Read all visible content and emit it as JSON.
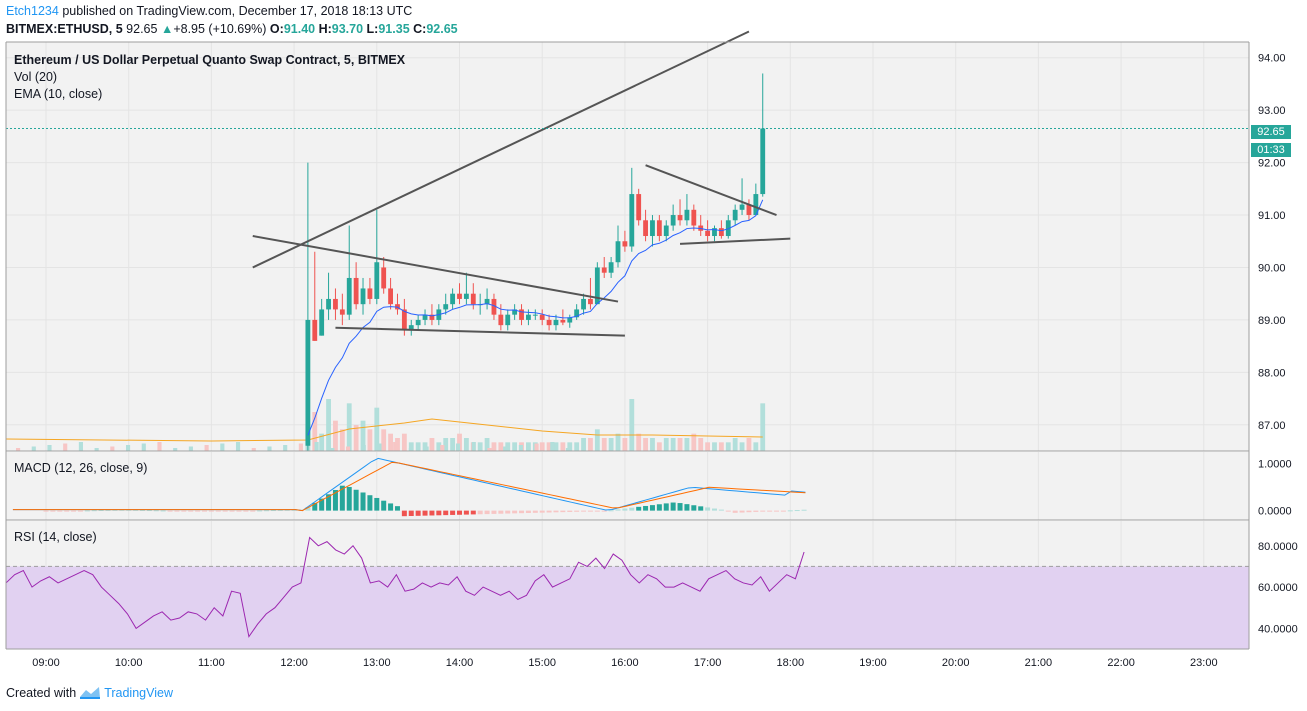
{
  "header": {
    "author": "Etch1234",
    "published": "published on TradingView.com, December 17, 2018 18:13 UTC",
    "symbol": "BITMEX:ETHUSD, 5",
    "last": "92.65",
    "change": "+8.95 (+10.69%)",
    "o_label": "O:",
    "o": "91.40",
    "h_label": "H:",
    "h": "93.70",
    "l_label": "L:",
    "l": "91.35",
    "c_label": "C:",
    "c": "92.65"
  },
  "legends": {
    "title": "Ethereum / US Dollar Perpetual Quanto Swap Contract, 5, BITMEX",
    "vol": "Vol (20)",
    "ema": "EMA (10, close)",
    "macd": "MACD (12, 26, close, 9)",
    "rsi": "RSI (14, close)"
  },
  "price_tag": {
    "price": "92.65",
    "countdown": "01:33"
  },
  "footer": {
    "created": "Created with",
    "brand": "TradingView"
  },
  "colors": {
    "up": "#26a69a",
    "down": "#ef5350",
    "ema": "#2962ff",
    "macd": "#2196f3",
    "signal": "#ff6d00",
    "rsi": "#9c27b0",
    "rsi_band": "#e1d1f1"
  },
  "chart_data": [
    {
      "type": "candlestick",
      "title": "Ethereum / US Dollar Perpetual Quanto Swap Contract, 5, BITMEX",
      "x_ticks": [
        "09:00",
        "10:00",
        "11:00",
        "12:00",
        "13:00",
        "14:00",
        "15:00",
        "16:00",
        "17:00",
        "18:00",
        "19:00",
        "20:00",
        "21:00",
        "22:00",
        "23:00"
      ],
      "y_ticks": [
        "87.00",
        "88.00",
        "89.00",
        "90.00",
        "91.00",
        "92.00",
        "93.00",
        "94.00"
      ],
      "ylim": [
        86.5,
        94.3
      ],
      "last_price": 92.65,
      "candles": [
        {
          "t": "12:10",
          "o": 86.6,
          "h": 92.0,
          "l": 86.5,
          "c": 89.0
        },
        {
          "t": "12:15",
          "o": 89.0,
          "h": 90.3,
          "l": 88.6,
          "c": 88.6
        },
        {
          "t": "12:20",
          "o": 88.7,
          "h": 89.4,
          "l": 88.7,
          "c": 89.2
        },
        {
          "t": "12:25",
          "o": 89.2,
          "h": 89.9,
          "l": 89.0,
          "c": 89.4
        },
        {
          "t": "12:30",
          "o": 89.4,
          "h": 89.6,
          "l": 89.0,
          "c": 89.2
        },
        {
          "t": "12:35",
          "o": 89.2,
          "h": 89.5,
          "l": 88.9,
          "c": 89.1
        },
        {
          "t": "12:40",
          "o": 89.1,
          "h": 90.8,
          "l": 89.0,
          "c": 89.8
        },
        {
          "t": "12:45",
          "o": 89.8,
          "h": 90.1,
          "l": 89.2,
          "c": 89.3
        },
        {
          "t": "12:50",
          "o": 89.3,
          "h": 89.8,
          "l": 89.1,
          "c": 89.6
        },
        {
          "t": "12:55",
          "o": 89.6,
          "h": 89.8,
          "l": 89.3,
          "c": 89.4
        },
        {
          "t": "13:00",
          "o": 89.4,
          "h": 91.1,
          "l": 89.3,
          "c": 90.1
        },
        {
          "t": "13:05",
          "o": 90.0,
          "h": 90.2,
          "l": 89.5,
          "c": 89.6
        },
        {
          "t": "13:10",
          "o": 89.6,
          "h": 89.8,
          "l": 89.2,
          "c": 89.3
        },
        {
          "t": "13:15",
          "o": 89.3,
          "h": 89.5,
          "l": 89.1,
          "c": 89.2
        },
        {
          "t": "13:20",
          "o": 89.2,
          "h": 89.4,
          "l": 88.7,
          "c": 88.8
        },
        {
          "t": "13:25",
          "o": 88.8,
          "h": 89.0,
          "l": 88.7,
          "c": 88.9
        },
        {
          "t": "13:30",
          "o": 88.9,
          "h": 89.1,
          "l": 88.8,
          "c": 89.0
        },
        {
          "t": "13:35",
          "o": 89.0,
          "h": 89.2,
          "l": 88.9,
          "c": 89.1
        },
        {
          "t": "13:40",
          "o": 89.1,
          "h": 89.3,
          "l": 88.9,
          "c": 89.0
        },
        {
          "t": "13:45",
          "o": 89.0,
          "h": 89.3,
          "l": 88.9,
          "c": 89.2
        },
        {
          "t": "13:50",
          "o": 89.2,
          "h": 89.5,
          "l": 89.1,
          "c": 89.3
        },
        {
          "t": "13:55",
          "o": 89.3,
          "h": 89.6,
          "l": 89.2,
          "c": 89.5
        },
        {
          "t": "14:00",
          "o": 89.5,
          "h": 89.7,
          "l": 89.3,
          "c": 89.4
        },
        {
          "t": "14:05",
          "o": 89.4,
          "h": 89.9,
          "l": 89.3,
          "c": 89.5
        },
        {
          "t": "14:10",
          "o": 89.5,
          "h": 89.7,
          "l": 89.2,
          "c": 89.3
        },
        {
          "t": "14:15",
          "o": 89.3,
          "h": 89.5,
          "l": 89.1,
          "c": 89.3
        },
        {
          "t": "14:20",
          "o": 89.3,
          "h": 89.6,
          "l": 89.2,
          "c": 89.4
        },
        {
          "t": "14:25",
          "o": 89.4,
          "h": 89.5,
          "l": 89.0,
          "c": 89.1
        },
        {
          "t": "14:30",
          "o": 89.1,
          "h": 89.3,
          "l": 88.8,
          "c": 88.9
        },
        {
          "t": "14:35",
          "o": 88.9,
          "h": 89.2,
          "l": 88.8,
          "c": 89.1
        },
        {
          "t": "14:40",
          "o": 89.1,
          "h": 89.3,
          "l": 89.0,
          "c": 89.2
        },
        {
          "t": "14:45",
          "o": 89.2,
          "h": 89.3,
          "l": 88.9,
          "c": 89.0
        },
        {
          "t": "14:50",
          "o": 89.0,
          "h": 89.2,
          "l": 88.9,
          "c": 89.1
        },
        {
          "t": "14:55",
          "o": 89.1,
          "h": 89.2,
          "l": 89.0,
          "c": 89.1
        },
        {
          "t": "15:00",
          "o": 89.1,
          "h": 89.2,
          "l": 88.9,
          "c": 89.0
        },
        {
          "t": "15:05",
          "o": 89.0,
          "h": 89.1,
          "l": 88.8,
          "c": 88.9
        },
        {
          "t": "15:10",
          "o": 88.9,
          "h": 89.1,
          "l": 88.8,
          "c": 89.0
        },
        {
          "t": "15:15",
          "o": 89.0,
          "h": 89.2,
          "l": 88.9,
          "c": 88.95
        },
        {
          "t": "15:20",
          "o": 88.95,
          "h": 89.1,
          "l": 88.85,
          "c": 89.05
        },
        {
          "t": "15:25",
          "o": 89.05,
          "h": 89.3,
          "l": 89.0,
          "c": 89.2
        },
        {
          "t": "15:30",
          "o": 89.2,
          "h": 89.5,
          "l": 89.1,
          "c": 89.4
        },
        {
          "t": "15:35",
          "o": 89.4,
          "h": 89.8,
          "l": 89.2,
          "c": 89.3
        },
        {
          "t": "15:40",
          "o": 89.3,
          "h": 90.1,
          "l": 89.3,
          "c": 90.0
        },
        {
          "t": "15:45",
          "o": 90.0,
          "h": 90.2,
          "l": 89.8,
          "c": 89.9
        },
        {
          "t": "15:50",
          "o": 89.9,
          "h": 90.2,
          "l": 89.8,
          "c": 90.1
        },
        {
          "t": "15:55",
          "o": 90.1,
          "h": 90.8,
          "l": 90.0,
          "c": 90.5
        },
        {
          "t": "16:00",
          "o": 90.5,
          "h": 90.7,
          "l": 90.3,
          "c": 90.4
        },
        {
          "t": "16:05",
          "o": 90.4,
          "h": 91.9,
          "l": 90.3,
          "c": 91.4
        },
        {
          "t": "16:10",
          "o": 91.4,
          "h": 91.5,
          "l": 90.8,
          "c": 90.9
        },
        {
          "t": "16:15",
          "o": 90.9,
          "h": 91.1,
          "l": 90.5,
          "c": 90.6
        },
        {
          "t": "16:20",
          "o": 90.6,
          "h": 91.0,
          "l": 90.4,
          "c": 90.9
        },
        {
          "t": "16:25",
          "o": 90.9,
          "h": 91.0,
          "l": 90.5,
          "c": 90.6
        },
        {
          "t": "16:30",
          "o": 90.6,
          "h": 90.9,
          "l": 90.5,
          "c": 90.8
        },
        {
          "t": "16:35",
          "o": 90.8,
          "h": 91.2,
          "l": 90.7,
          "c": 91.0
        },
        {
          "t": "16:40",
          "o": 91.0,
          "h": 91.3,
          "l": 90.8,
          "c": 90.9
        },
        {
          "t": "16:45",
          "o": 90.9,
          "h": 91.4,
          "l": 90.8,
          "c": 91.1
        },
        {
          "t": "16:50",
          "o": 91.1,
          "h": 91.2,
          "l": 90.7,
          "c": 90.8
        },
        {
          "t": "16:55",
          "o": 90.8,
          "h": 91.0,
          "l": 90.6,
          "c": 90.7
        },
        {
          "t": "17:00",
          "o": 90.7,
          "h": 90.9,
          "l": 90.5,
          "c": 90.6
        },
        {
          "t": "17:05",
          "o": 90.6,
          "h": 90.8,
          "l": 90.5,
          "c": 90.75
        },
        {
          "t": "17:10",
          "o": 90.75,
          "h": 90.9,
          "l": 90.55,
          "c": 90.6
        },
        {
          "t": "17:15",
          "o": 90.6,
          "h": 91.0,
          "l": 90.55,
          "c": 90.9
        },
        {
          "t": "17:20",
          "o": 90.9,
          "h": 91.2,
          "l": 90.8,
          "c": 91.1
        },
        {
          "t": "17:25",
          "o": 91.1,
          "h": 91.7,
          "l": 91.0,
          "c": 91.2
        },
        {
          "t": "17:30",
          "o": 91.2,
          "h": 91.3,
          "l": 90.9,
          "c": 91.0
        },
        {
          "t": "17:35",
          "o": 91.0,
          "h": 91.6,
          "l": 91.0,
          "c": 91.4
        },
        {
          "t": "17:40",
          "o": 91.4,
          "h": 93.7,
          "l": 91.35,
          "c": 92.65
        }
      ],
      "volume": [
        6,
        9,
        4,
        12,
        7,
        5,
        11,
        6,
        7,
        5,
        10,
        5,
        4,
        3,
        4,
        2,
        2,
        2,
        3,
        2,
        3,
        3,
        4,
        3,
        2,
        2,
        3,
        2,
        2,
        2,
        2,
        2,
        2,
        2,
        2,
        2,
        2,
        2,
        2,
        2,
        3,
        3,
        5,
        3,
        3,
        4,
        3,
        12,
        4,
        3,
        3,
        2,
        3,
        3,
        3,
        3,
        4,
        3,
        2,
        2,
        2,
        2,
        3,
        2,
        3,
        2,
        11
      ],
      "ema_label": "EMA (10, close)",
      "vol_label": "Vol (20)"
    },
    {
      "type": "line",
      "name": "MACD (12, 26, close, 9)",
      "y_ticks": [
        "0.0000",
        "1.0000"
      ],
      "ylim": [
        -0.2,
        1.25
      ]
    },
    {
      "type": "line",
      "name": "RSI (14, close)",
      "y_ticks": [
        "40.0000",
        "60.0000",
        "80.0000"
      ],
      "ylim": [
        30,
        92
      ],
      "bands": [
        30,
        70
      ],
      "values": [
        62,
        66,
        68,
        60,
        63,
        65,
        62,
        64,
        66,
        68,
        66,
        60,
        56,
        52,
        47,
        40,
        43,
        46,
        48,
        44,
        45,
        48,
        47,
        44,
        50,
        46,
        58,
        57,
        36,
        42,
        47,
        50,
        55,
        60,
        62,
        84,
        80,
        82,
        78,
        76,
        80,
        74,
        62,
        63,
        60,
        66,
        58,
        59,
        62,
        60,
        62,
        61,
        65,
        58,
        56,
        60,
        58,
        56,
        58,
        54,
        56,
        63,
        66,
        60,
        62,
        64,
        72,
        70,
        74,
        69,
        76,
        73,
        66,
        62,
        66,
        64,
        60,
        60,
        62,
        60,
        58,
        64,
        66,
        68,
        64,
        62,
        61,
        65,
        58,
        62,
        66,
        64,
        77
      ]
    }
  ]
}
